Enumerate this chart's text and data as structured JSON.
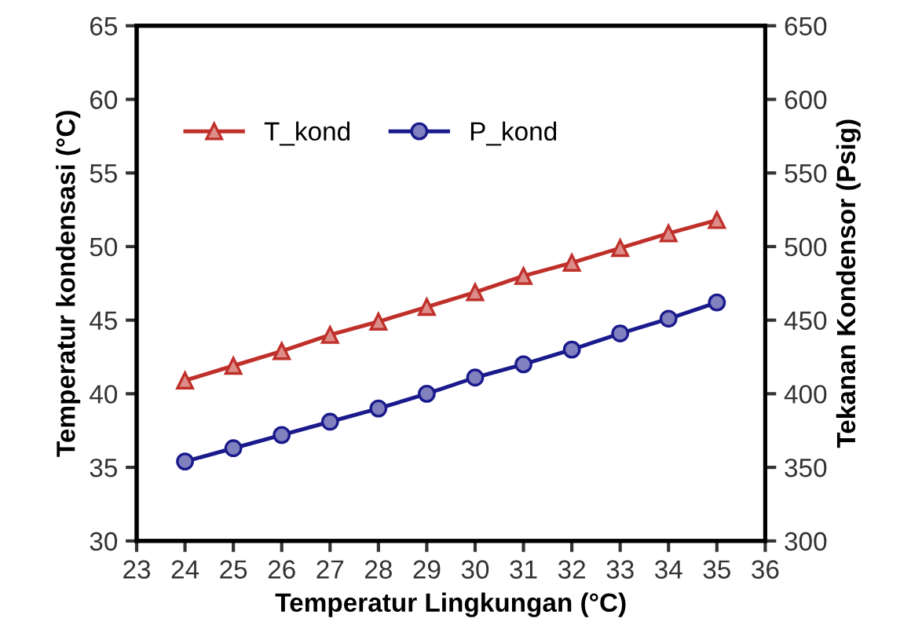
{
  "chart_data": {
    "type": "line",
    "xlabel": "Temperatur Lingkungan (°C)",
    "ylabel": "Temperatur kondensasi (°C)",
    "y2label": "Tekanan Kondensor (Psig)",
    "x": [
      24,
      25,
      26,
      27,
      28,
      29,
      30,
      31,
      32,
      33,
      34,
      35
    ],
    "series": [
      {
        "name": "T_kond",
        "color": "#c0302a",
        "marker": "triangle",
        "values": [
          40.9,
          41.9,
          42.9,
          44.0,
          44.9,
          45.9,
          46.9,
          48.0,
          48.9,
          49.9,
          50.9,
          51.8
        ]
      },
      {
        "name": "P_kond",
        "color": "#1a1a8c",
        "marker": "circle",
        "axis": "y2",
        "values": [
          354,
          363,
          372,
          381,
          390,
          400,
          411,
          420,
          430,
          441,
          451,
          462
        ]
      }
    ],
    "xlim": [
      23,
      36
    ],
    "xticks": [
      23,
      24,
      25,
      26,
      27,
      28,
      29,
      30,
      31,
      32,
      33,
      34,
      35,
      36
    ],
    "ylim": [
      30,
      65
    ],
    "yticks": [
      30,
      35,
      40,
      45,
      50,
      55,
      60,
      65
    ],
    "y2lim": [
      300,
      650
    ],
    "y2ticks": [
      300,
      350,
      400,
      450,
      500,
      550,
      600,
      650
    ],
    "grid": false,
    "legend": "top left",
    "line_style": "solid"
  }
}
